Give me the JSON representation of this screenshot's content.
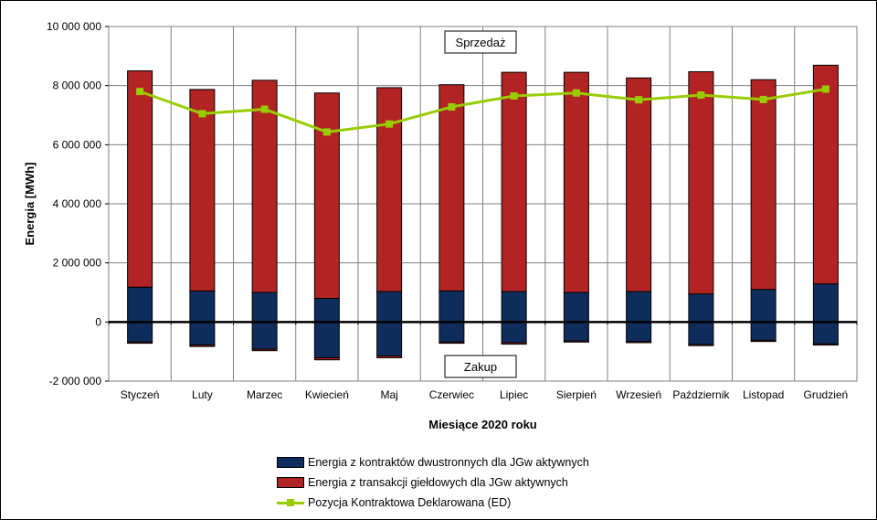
{
  "chart_data": {
    "type": "bar",
    "stacked": true,
    "ylabel": "Energia [MWh]",
    "xlabel": "Miesiące 2020  roku",
    "ylim": [
      -2000000,
      10000000
    ],
    "yticks": [
      -2000000,
      0,
      2000000,
      4000000,
      6000000,
      8000000,
      10000000
    ],
    "ytick_labels": [
      "-2 000 000",
      "0",
      "2 000 000",
      "4 000 000",
      "6 000 000",
      "8 000 000",
      "10 000 000"
    ],
    "categories": [
      "Styczeń",
      "Luty",
      "Marzec",
      "Kwiecień",
      "Maj",
      "Czerwiec",
      "Lipiec",
      "Sierpień",
      "Wrzesień",
      "Październik",
      "Listopad",
      "Grudzień"
    ],
    "grid": true,
    "legend_position": "bottom",
    "annotations": {
      "top": "Sprzedaż",
      "bottom": "Zakup"
    },
    "series": [
      {
        "name": "Energia z kontraktów dwustronnych dla JGw aktywnych",
        "color": "#0f2d5c",
        "sales": [
          1180000,
          1050000,
          1000000,
          800000,
          1030000,
          1050000,
          1030000,
          1000000,
          1030000,
          950000,
          1100000,
          1290000
        ],
        "purchase": [
          -680000,
          -780000,
          -920000,
          -1210000,
          -1150000,
          -680000,
          -700000,
          -640000,
          -660000,
          -760000,
          -620000,
          -740000
        ]
      },
      {
        "name": "Energia z transakcji giełdowych dla JGw aktywnych",
        "color": "#b22424",
        "sales": [
          7320000,
          6820000,
          7180000,
          6950000,
          6900000,
          6980000,
          7420000,
          7450000,
          7230000,
          7520000,
          7100000,
          7400000
        ],
        "purchase": [
          -40000,
          -50000,
          -50000,
          -70000,
          -60000,
          -40000,
          -50000,
          -40000,
          -40000,
          -40000,
          -40000,
          -40000
        ]
      }
    ],
    "line": {
      "name": "Pozycja Kontraktowa Deklarowana (ED)",
      "color": "#99cc00",
      "values": [
        7800000,
        7050000,
        7200000,
        6430000,
        6700000,
        7280000,
        7650000,
        7750000,
        7520000,
        7680000,
        7530000,
        7880000
      ]
    }
  }
}
